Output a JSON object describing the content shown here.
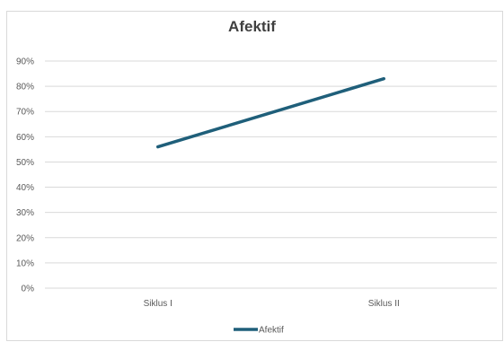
{
  "chart_data": {
    "type": "line",
    "title": "Afektif",
    "xlabel": "",
    "ylabel": "",
    "categories": [
      "Siklus I",
      "Siklus II"
    ],
    "series": [
      {
        "name": "Afektif",
        "values": [
          56,
          83
        ],
        "color": "#1f5f7a"
      }
    ],
    "ylim": [
      0,
      90
    ],
    "y_ticks": [
      "0%",
      "10%",
      "20%",
      "30%",
      "40%",
      "50%",
      "60%",
      "70%",
      "80%",
      "90%"
    ],
    "y_unit": "%",
    "grid": true,
    "legend": "bottom",
    "colors": {
      "gridline": "#d9d9d9",
      "axis_text": "#595959"
    }
  }
}
